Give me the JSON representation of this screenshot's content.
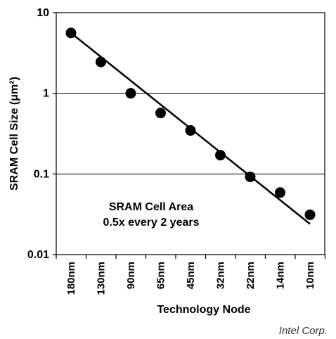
{
  "chart_data": {
    "type": "scatter",
    "xlabel": "Technology Node",
    "ylabel": "SRAM Cell Size (μm²)",
    "y_scale": "log",
    "ylim": [
      0.01,
      10
    ],
    "yticks": [
      "0.01",
      "0.1",
      "1",
      "10"
    ],
    "grid": "horizontal at 0.1 and 1",
    "categories": [
      "180nm",
      "130nm",
      "90nm",
      "65nm",
      "45nm",
      "32nm",
      "22nm",
      "14nm",
      "10nm"
    ],
    "series": [
      {
        "values": [
          5.6,
          2.45,
          1.0,
          0.57,
          0.346,
          0.171,
          0.092,
          0.0588,
          0.0312
        ]
      }
    ],
    "trendline": {
      "type": "exponential",
      "start": [
        0,
        5.6
      ],
      "end": [
        8,
        0.024
      ]
    },
    "annotation": [
      "SRAM Cell Area",
      "0.5x every 2 years"
    ]
  },
  "credit": "Intel Corp."
}
